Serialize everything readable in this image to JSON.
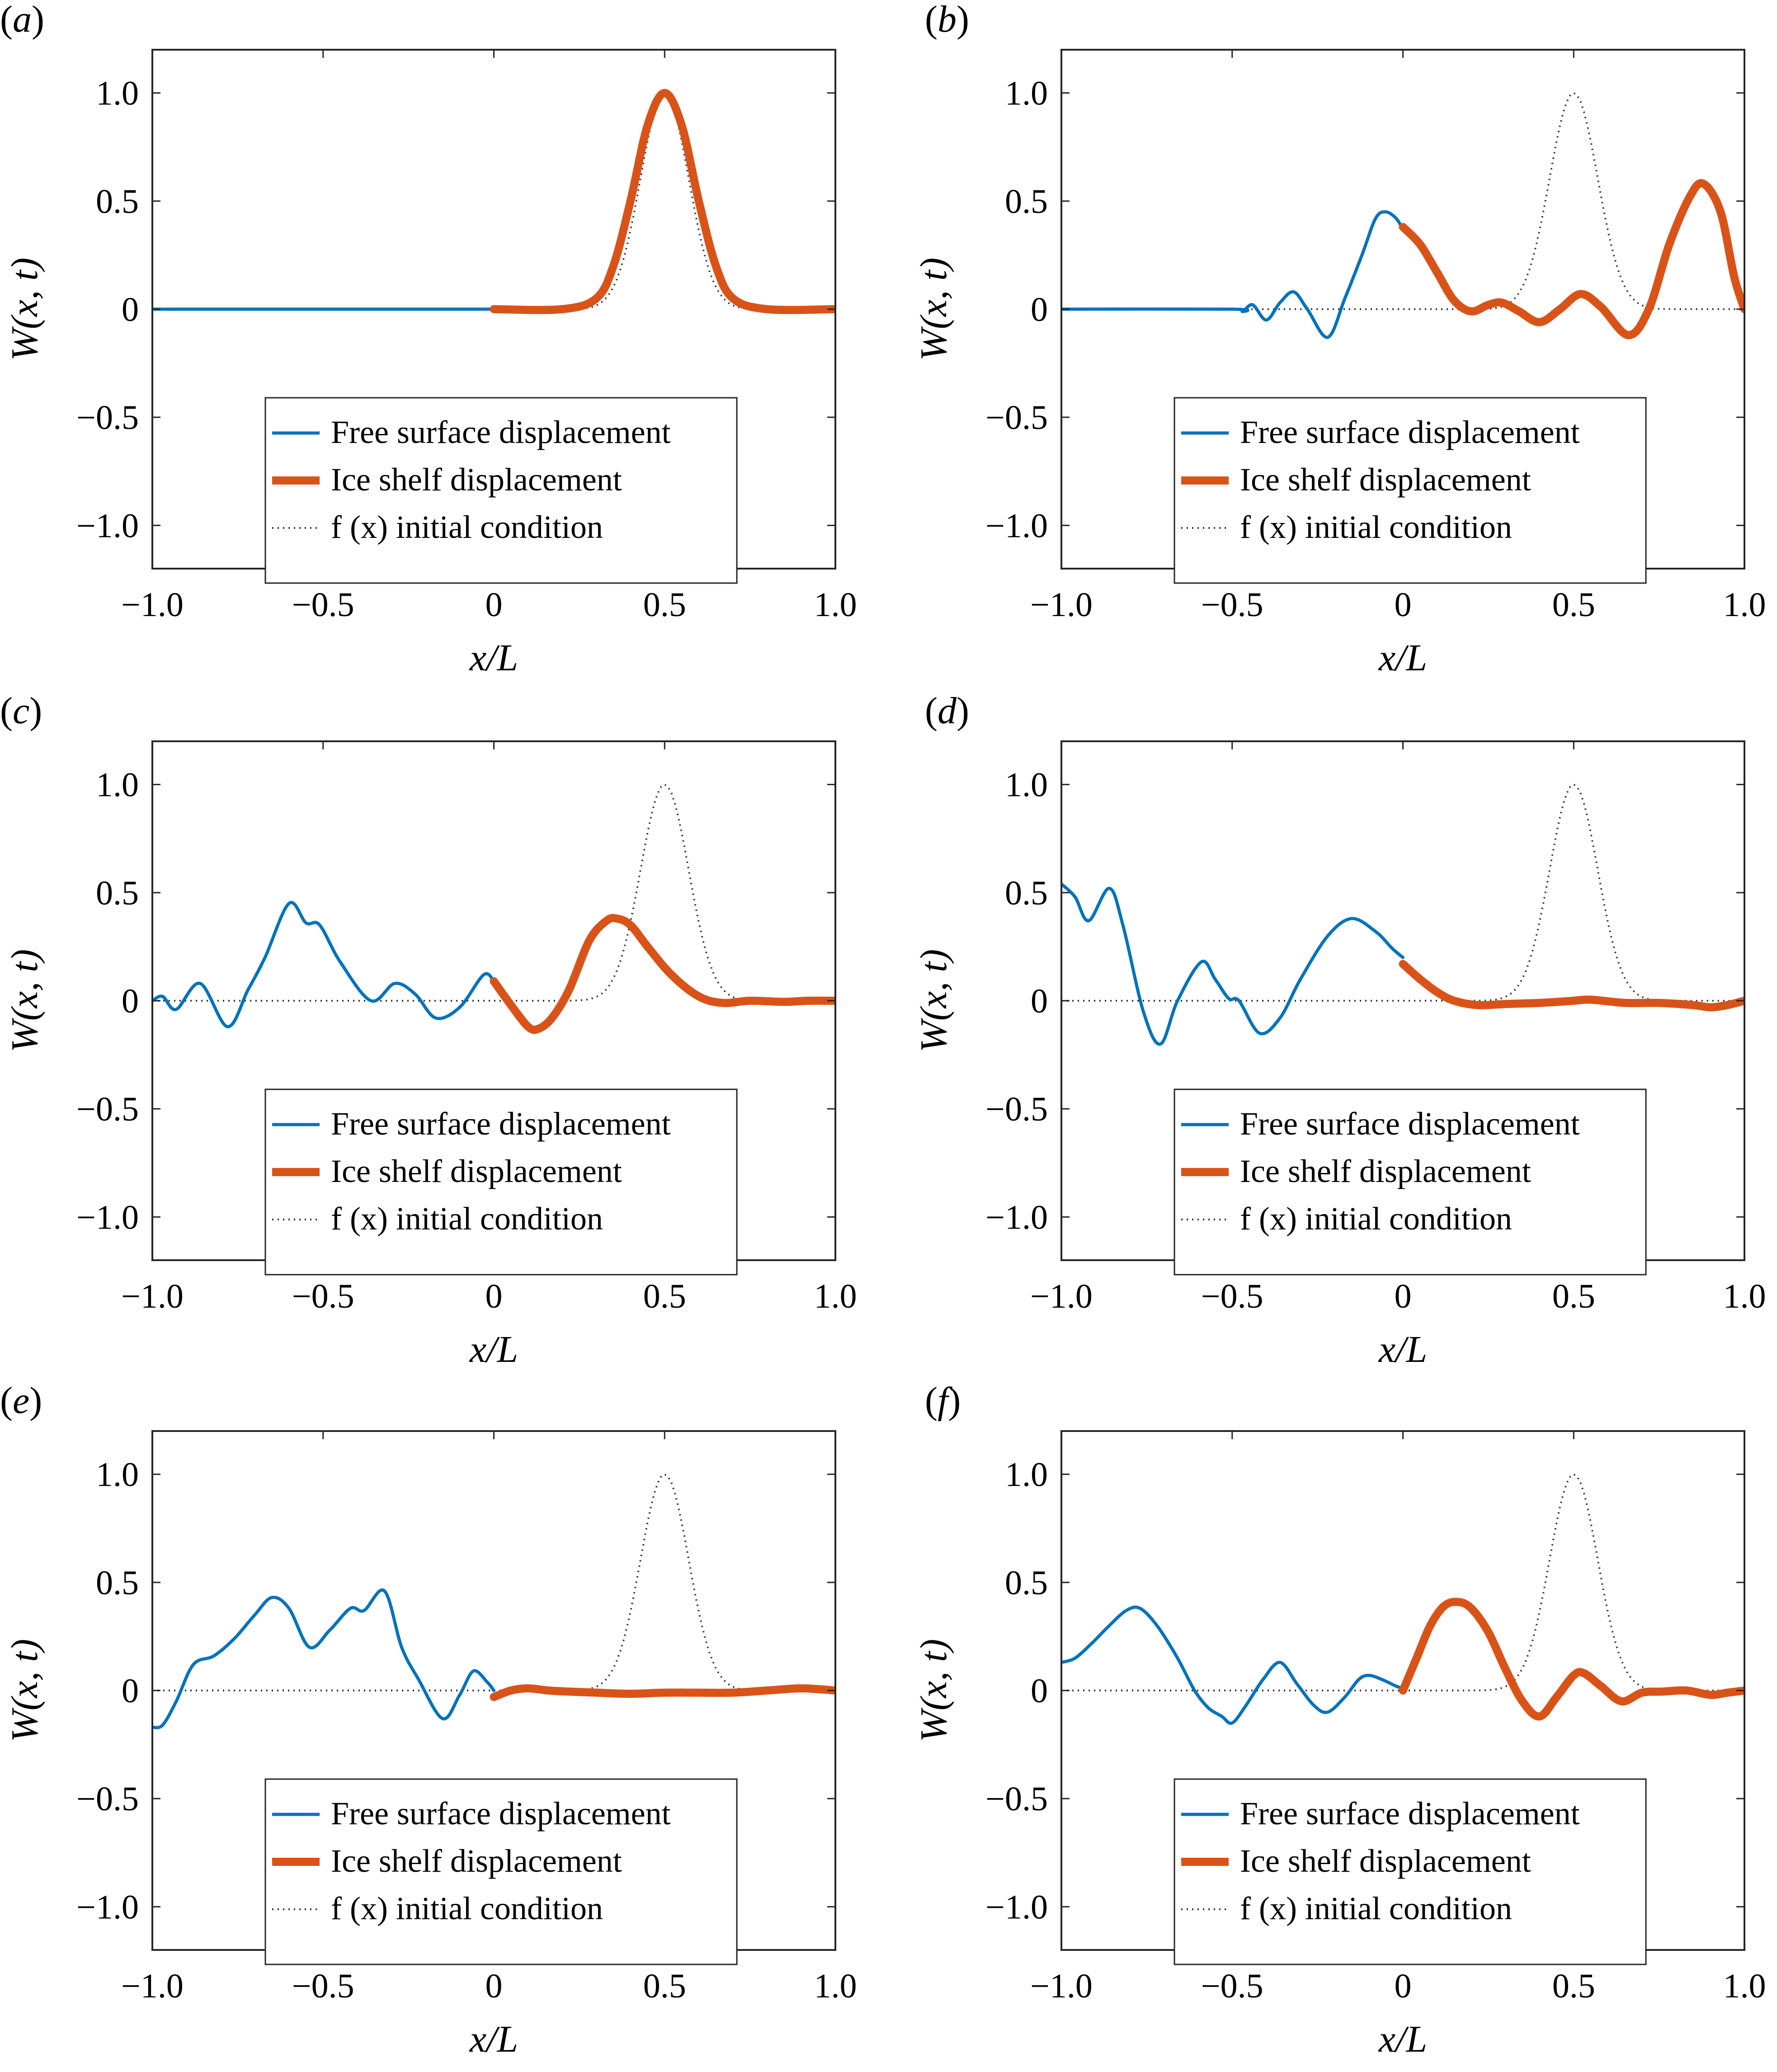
{
  "figure": {
    "panels": [
      "a",
      "b",
      "c",
      "d",
      "e",
      "f"
    ],
    "colors": {
      "free_surface": "#0072BD",
      "ice_shelf": "#D95319",
      "initial": "#333333",
      "axis": "#262626"
    }
  },
  "chart_data": [
    {
      "panel": "(a)",
      "type": "line",
      "xlabel": "x/L",
      "ylabel": "W(x, t)",
      "xlim": [
        -1.0,
        1.0
      ],
      "ylim": [
        -1.2,
        1.2
      ],
      "xticks": [
        "−1.0",
        "−0.5",
        "0",
        "0.5",
        "1.0"
      ],
      "yticks": [
        "−1.0",
        "−0.5",
        "0",
        "0.5",
        "1.0"
      ],
      "grid": false,
      "legend_position": "lower center",
      "legend": [
        "Free surface displacement",
        "Ice shelf displacement",
        "f (x) initial condition"
      ],
      "series": [
        {
          "name": "Free surface displacement",
          "x": [
            -1.0,
            -0.5,
            0.0
          ],
          "y": [
            0,
            0,
            0
          ]
        },
        {
          "name": "Ice shelf displacement",
          "x": [
            0.0,
            0.2,
            0.3,
            0.35,
            0.4,
            0.45,
            0.5,
            0.55,
            0.6,
            0.65,
            0.7,
            0.8,
            1.0
          ],
          "y": [
            0,
            0.0,
            0.05,
            0.2,
            0.5,
            0.85,
            1.0,
            0.85,
            0.5,
            0.2,
            0.05,
            0.0,
            0
          ]
        },
        {
          "name": "f(x) initial condition",
          "type": "gaussian",
          "center": 0.5,
          "peak": 1.0
        }
      ]
    },
    {
      "panel": "(b)",
      "type": "line",
      "xlabel": "x/L",
      "ylabel": "W(x, t)",
      "xlim": [
        -1.0,
        1.0
      ],
      "ylim": [
        -1.2,
        1.2
      ],
      "xticks": [
        "−1.0",
        "−0.5",
        "0",
        "0.5",
        "1.0"
      ],
      "yticks": [
        "−1.0",
        "−0.5",
        "0",
        "0.5",
        "1.0"
      ],
      "grid": false,
      "legend_position": "lower center",
      "legend": [
        "Free surface displacement",
        "Ice shelf displacement",
        "f (x) initial condition"
      ],
      "series": [
        {
          "name": "Free surface displacement",
          "x": [
            -1.0,
            -0.5,
            -0.47,
            -0.44,
            -0.4,
            -0.36,
            -0.32,
            -0.28,
            -0.22,
            -0.17,
            -0.12,
            -0.08,
            -0.05,
            -0.02,
            0.0
          ],
          "y": [
            0,
            0,
            -0.01,
            0.02,
            -0.05,
            0.03,
            0.08,
            0.0,
            -0.13,
            0.05,
            0.25,
            0.42,
            0.45,
            0.42,
            0.37
          ]
        },
        {
          "name": "Ice shelf displacement",
          "x": [
            0.0,
            0.05,
            0.1,
            0.15,
            0.2,
            0.25,
            0.29,
            0.34,
            0.4,
            0.46,
            0.52,
            0.58,
            0.66,
            0.72,
            0.78,
            0.84,
            0.88,
            0.93,
            0.97,
            1.0
          ],
          "y": [
            0.38,
            0.3,
            0.17,
            0.04,
            -0.01,
            0.02,
            0.03,
            -0.01,
            -0.06,
            0.0,
            0.07,
            0.01,
            -0.12,
            0.0,
            0.3,
            0.52,
            0.58,
            0.45,
            0.15,
            0.0
          ]
        },
        {
          "name": "f(x) initial condition",
          "type": "gaussian",
          "center": 0.5,
          "peak": 1.0
        }
      ]
    },
    {
      "panel": "(c)",
      "type": "line",
      "xlabel": "x/L",
      "ylabel": "W(x, t)",
      "xlim": [
        -1.0,
        1.0
      ],
      "ylim": [
        -1.2,
        1.2
      ],
      "xticks": [
        "−1.0",
        "−0.5",
        "0",
        "0.5",
        "1.0"
      ],
      "yticks": [
        "−1.0",
        "−0.5",
        "0",
        "0.5",
        "1.0"
      ],
      "grid": false,
      "legend_position": "lower center",
      "legend": [
        "Free surface displacement",
        "Ice shelf displacement",
        "f (x) initial condition"
      ],
      "series": [
        {
          "name": "Free surface displacement",
          "x": [
            -1.0,
            -0.97,
            -0.93,
            -0.86,
            -0.78,
            -0.72,
            -0.67,
            -0.6,
            -0.55,
            -0.51,
            -0.45,
            -0.36,
            -0.29,
            -0.23,
            -0.17,
            -0.1,
            -0.03,
            0.0
          ],
          "y": [
            0.0,
            0.02,
            -0.04,
            0.08,
            -0.12,
            0.05,
            0.2,
            0.45,
            0.36,
            0.35,
            0.18,
            0.0,
            0.08,
            0.03,
            -0.08,
            -0.03,
            0.12,
            0.09
          ]
        },
        {
          "name": "Ice shelf displacement",
          "x": [
            0.0,
            0.05,
            0.1,
            0.13,
            0.17,
            0.22,
            0.28,
            0.33,
            0.36,
            0.4,
            0.45,
            0.52,
            0.6,
            0.67,
            0.75,
            0.85,
            0.92,
            1.0
          ],
          "y": [
            0.09,
            -0.02,
            -0.12,
            -0.13,
            -0.08,
            0.05,
            0.28,
            0.37,
            0.38,
            0.35,
            0.25,
            0.12,
            0.02,
            -0.01,
            0.0,
            -0.005,
            0.0,
            0.0
          ]
        },
        {
          "name": "f(x) initial condition",
          "type": "gaussian",
          "center": 0.5,
          "peak": 1.0
        }
      ]
    },
    {
      "panel": "(d)",
      "type": "line",
      "xlabel": "x/L",
      "ylabel": "W(x, t)",
      "xlim": [
        -1.0,
        1.0
      ],
      "ylim": [
        -1.2,
        1.2
      ],
      "xticks": [
        "−1.0",
        "−0.5",
        "0",
        "0.5",
        "1.0"
      ],
      "yticks": [
        "−1.0",
        "−0.5",
        "0",
        "0.5",
        "1.0"
      ],
      "grid": false,
      "legend_position": "lower center",
      "legend": [
        "Free surface displacement",
        "Ice shelf displacement",
        "f (x) initial condition"
      ],
      "series": [
        {
          "name": "Free surface displacement",
          "x": [
            -1.0,
            -0.96,
            -0.92,
            -0.86,
            -0.82,
            -0.76,
            -0.71,
            -0.66,
            -0.59,
            -0.55,
            -0.51,
            -0.48,
            -0.42,
            -0.36,
            -0.3,
            -0.22,
            -0.15,
            -0.08,
            -0.03,
            0.0
          ],
          "y": [
            0.54,
            0.48,
            0.37,
            0.52,
            0.35,
            -0.05,
            -0.2,
            0.0,
            0.18,
            0.1,
            0.01,
            0.0,
            -0.15,
            -0.08,
            0.1,
            0.3,
            0.38,
            0.32,
            0.24,
            0.2
          ]
        },
        {
          "name": "Ice shelf displacement",
          "x": [
            0.0,
            0.05,
            0.1,
            0.15,
            0.22,
            0.3,
            0.4,
            0.5,
            0.55,
            0.65,
            0.75,
            0.85,
            0.9,
            0.95,
            1.0
          ],
          "y": [
            0.17,
            0.1,
            0.04,
            0.0,
            -0.02,
            -0.015,
            -0.01,
            0.0,
            0.005,
            -0.01,
            -0.01,
            -0.02,
            -0.03,
            -0.02,
            0.0
          ]
        },
        {
          "name": "f(x) initial condition",
          "type": "gaussian",
          "center": 0.5,
          "peak": 1.0
        }
      ]
    },
    {
      "panel": "(e)",
      "type": "line",
      "xlabel": "x/L",
      "ylabel": "W(x, t)",
      "xlim": [
        -1.0,
        1.0
      ],
      "ylim": [
        -1.2,
        1.2
      ],
      "xticks": [
        "−1.0",
        "−0.5",
        "0",
        "0.5",
        "1.0"
      ],
      "yticks": [
        "−1.0",
        "−0.5",
        "0",
        "0.5",
        "1.0"
      ],
      "grid": false,
      "legend_position": "lower center",
      "legend": [
        "Free surface displacement",
        "Ice shelf displacement",
        "f (x) initial condition"
      ],
      "series": [
        {
          "name": "Free surface displacement",
          "x": [
            -1.0,
            -0.97,
            -0.93,
            -0.88,
            -0.82,
            -0.76,
            -0.7,
            -0.65,
            -0.6,
            -0.54,
            -0.48,
            -0.42,
            -0.38,
            -0.32,
            -0.27,
            -0.22,
            -0.15,
            -0.1,
            -0.06,
            -0.02,
            0.0
          ],
          "y": [
            -0.17,
            -0.16,
            -0.05,
            0.12,
            0.16,
            0.24,
            0.35,
            0.43,
            0.38,
            0.2,
            0.28,
            0.38,
            0.37,
            0.46,
            0.2,
            0.05,
            -0.13,
            -0.02,
            0.09,
            0.04,
            0.0
          ]
        },
        {
          "name": "Ice shelf displacement",
          "x": [
            0.0,
            0.05,
            0.1,
            0.16,
            0.22,
            0.3,
            0.4,
            0.5,
            0.6,
            0.7,
            0.8,
            0.9,
            1.0
          ],
          "y": [
            -0.03,
            0.0,
            0.01,
            0.0,
            -0.005,
            -0.01,
            -0.015,
            -0.01,
            -0.01,
            -0.01,
            0.0,
            0.01,
            0.0
          ]
        },
        {
          "name": "f(x) initial condition",
          "type": "gaussian",
          "center": 0.5,
          "peak": 1.0
        }
      ]
    },
    {
      "panel": "(f)",
      "type": "line",
      "xlabel": "x/L",
      "ylabel": "W(x, t)",
      "xlim": [
        -1.0,
        1.0
      ],
      "ylim": [
        -1.2,
        1.2
      ],
      "xticks": [
        "−1.0",
        "−0.5",
        "0",
        "0.5",
        "1.0"
      ],
      "yticks": [
        "−1.0",
        "−0.5",
        "0",
        "0.5",
        "1.0"
      ],
      "grid": false,
      "legend_position": "lower center",
      "legend": [
        "Free surface displacement",
        "Ice shelf displacement",
        "f (x) initial condition"
      ],
      "series": [
        {
          "name": "Free surface displacement",
          "x": [
            -1.0,
            -0.96,
            -0.91,
            -0.86,
            -0.81,
            -0.77,
            -0.72,
            -0.66,
            -0.61,
            -0.57,
            -0.53,
            -0.5,
            -0.46,
            -0.41,
            -0.36,
            -0.31,
            -0.26,
            -0.22,
            -0.17,
            -0.13,
            -0.1,
            -0.06,
            -0.02,
            0.0
          ],
          "y": [
            0.13,
            0.15,
            0.22,
            0.3,
            0.37,
            0.38,
            0.3,
            0.15,
            0.0,
            -0.08,
            -0.12,
            -0.15,
            -0.07,
            0.05,
            0.13,
            0.03,
            -0.07,
            -0.1,
            -0.03,
            0.05,
            0.07,
            0.05,
            0.02,
            0.01
          ]
        },
        {
          "name": "Ice shelf displacement",
          "x": [
            0.0,
            0.04,
            0.08,
            0.12,
            0.16,
            0.2,
            0.25,
            0.3,
            0.35,
            0.4,
            0.45,
            0.5,
            0.53,
            0.58,
            0.64,
            0.7,
            0.76,
            0.83,
            0.9,
            0.95,
            1.0
          ],
          "y": [
            0.0,
            0.15,
            0.3,
            0.39,
            0.41,
            0.38,
            0.27,
            0.1,
            -0.05,
            -0.12,
            -0.03,
            0.07,
            0.08,
            0.02,
            -0.05,
            -0.01,
            -0.005,
            0.0,
            -0.02,
            -0.01,
            0.0
          ]
        },
        {
          "name": "f(x) initial condition",
          "type": "gaussian",
          "center": 0.5,
          "peak": 1.0
        }
      ]
    }
  ]
}
